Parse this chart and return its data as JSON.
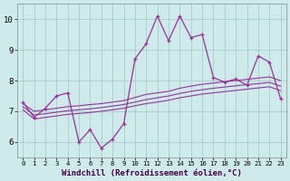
{
  "xlabel": "Windchill (Refroidissement éolien,°C)",
  "background_color": "#ceeaea",
  "grid_color": "#aacccc",
  "line_color": "#993399",
  "x": [
    0,
    1,
    2,
    3,
    4,
    5,
    6,
    7,
    8,
    9,
    10,
    11,
    12,
    13,
    14,
    15,
    16,
    17,
    18,
    19,
    20,
    21,
    22,
    23
  ],
  "y_main": [
    7.3,
    6.8,
    7.1,
    7.5,
    7.6,
    6.0,
    6.4,
    5.8,
    6.1,
    6.6,
    8.7,
    9.2,
    10.1,
    9.3,
    10.1,
    9.4,
    9.5,
    8.1,
    7.95,
    8.05,
    7.85,
    8.8,
    8.6,
    7.4
  ],
  "y_upper": [
    7.25,
    7.0,
    7.05,
    7.1,
    7.15,
    7.18,
    7.22,
    7.25,
    7.3,
    7.35,
    7.45,
    7.55,
    7.6,
    7.65,
    7.75,
    7.82,
    7.88,
    7.92,
    7.96,
    8.0,
    8.04,
    8.08,
    8.12,
    8.0
  ],
  "y_mid": [
    7.15,
    6.88,
    6.92,
    6.97,
    7.02,
    7.05,
    7.08,
    7.12,
    7.17,
    7.22,
    7.3,
    7.38,
    7.44,
    7.5,
    7.58,
    7.65,
    7.7,
    7.75,
    7.79,
    7.83,
    7.87,
    7.9,
    7.94,
    7.82
  ],
  "y_lower": [
    7.05,
    6.75,
    6.8,
    6.85,
    6.9,
    6.93,
    6.96,
    7.0,
    7.05,
    7.1,
    7.18,
    7.25,
    7.3,
    7.36,
    7.44,
    7.5,
    7.56,
    7.6,
    7.64,
    7.68,
    7.72,
    7.76,
    7.8,
    7.67
  ],
  "ylim": [
    5.5,
    10.5
  ],
  "xlim": [
    -0.5,
    23.5
  ],
  "yticks": [
    6,
    7,
    8,
    9,
    10
  ],
  "xticks": [
    0,
    1,
    2,
    3,
    4,
    5,
    6,
    7,
    8,
    9,
    10,
    11,
    12,
    13,
    14,
    15,
    16,
    17,
    18,
    19,
    20,
    21,
    22,
    23
  ]
}
